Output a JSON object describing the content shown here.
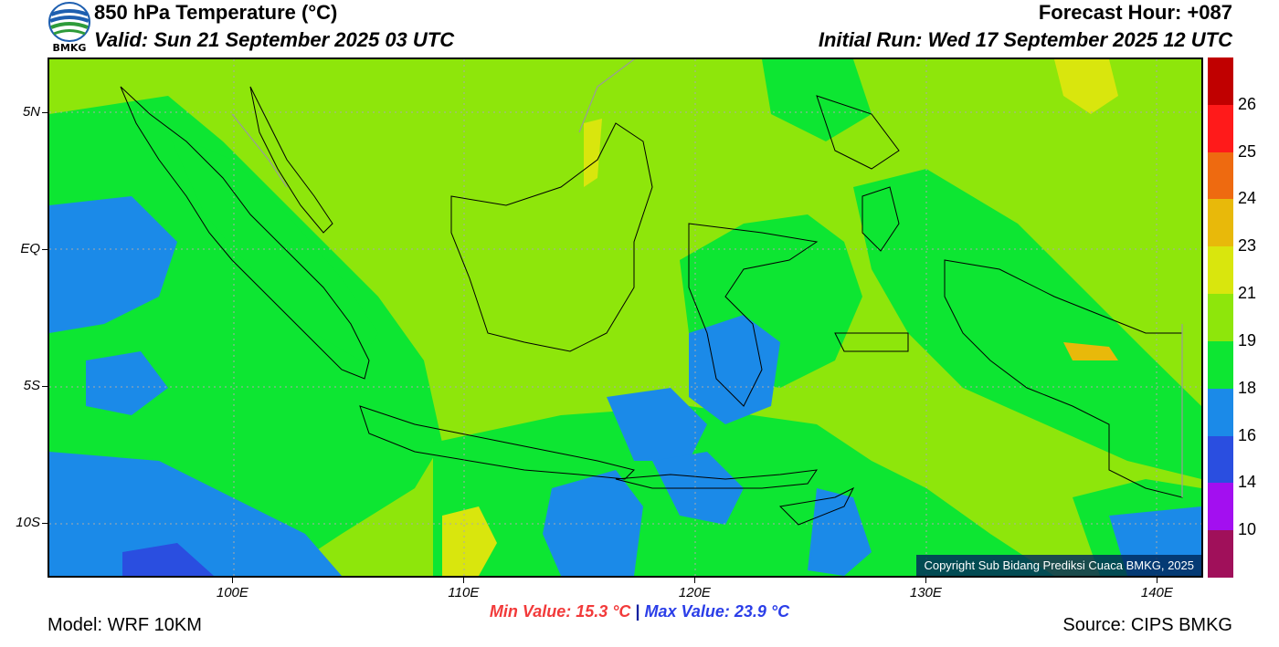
{
  "header": {
    "logo_text": "BMKG",
    "title": "850 hPa Temperature (°C)",
    "valid": "Valid: Sun 21 September 2025 03 UTC",
    "forecast_hour": "Forecast Hour: +087",
    "initial_run": "Initial Run: Wed 17 September 2025 12 UTC"
  },
  "map": {
    "lon_range": [
      92,
      142
    ],
    "lat_range": [
      -12,
      7
    ],
    "lat_labels": [
      {
        "lat": 5,
        "label": "5N"
      },
      {
        "lat": 0,
        "label": "EQ"
      },
      {
        "lat": -5,
        "label": "5S"
      },
      {
        "lat": -10,
        "label": "10S"
      }
    ],
    "lon_labels": [
      {
        "lon": 100,
        "label": "100E"
      },
      {
        "lon": 110,
        "label": "110E"
      },
      {
        "lon": 120,
        "label": "120E"
      },
      {
        "lon": 130,
        "label": "130E"
      },
      {
        "lon": 140,
        "label": "140E"
      }
    ],
    "copyright": "Copyright Sub Bidang Prediksi Cuaca BMKG, 2025"
  },
  "colorbar": {
    "segments": [
      {
        "color": "#c00000"
      },
      {
        "color": "#ff1a1a"
      },
      {
        "color": "#ee6a10"
      },
      {
        "color": "#e8b90a"
      },
      {
        "color": "#d9e60d"
      },
      {
        "color": "#8ee60b"
      },
      {
        "color": "#0de632"
      },
      {
        "color": "#1b8ae8"
      },
      {
        "color": "#2a4ee0"
      },
      {
        "color": "#a30ff0"
      },
      {
        "color": "#a0105a"
      }
    ],
    "labels": [
      "26",
      "25",
      "24",
      "23",
      "21",
      "19",
      "18",
      "16",
      "14",
      "10"
    ]
  },
  "footer": {
    "min_value": "Min Value: 15.3 °C",
    "separator": "|",
    "max_value": "Max Value: 23.9 °C",
    "model": "Model: WRF 10KM",
    "source": "Source: CIPS BMKG"
  }
}
